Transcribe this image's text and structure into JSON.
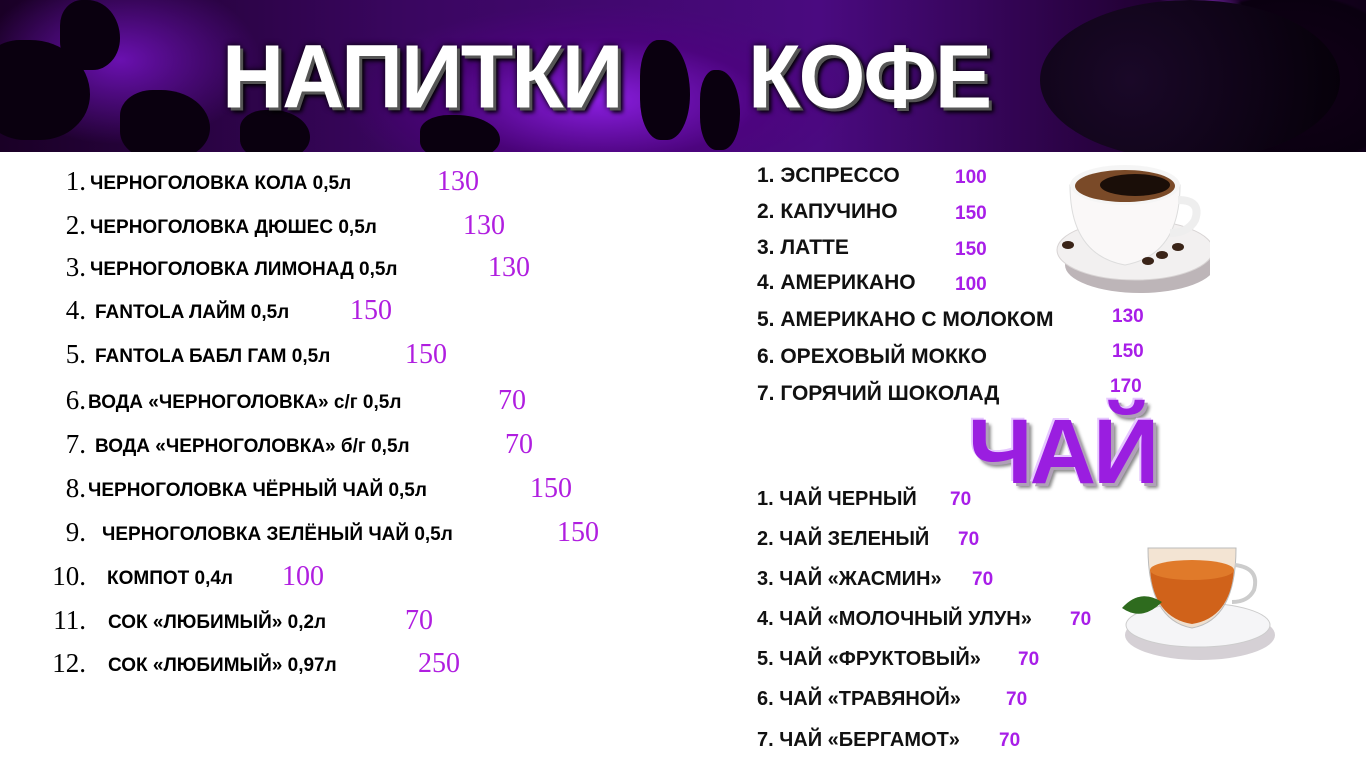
{
  "header": {
    "title_drinks": "НАПИТКИ",
    "title_coffee": "КОФЕ"
  },
  "colors": {
    "price": "#b01ee0",
    "accent": "#9a1ee0",
    "header_bg": "#4a0a80"
  },
  "drinks": [
    {
      "num": "1.",
      "name": "ЧЕРНОГОЛОВКА КОЛА 0,5л",
      "price": "130"
    },
    {
      "num": "2.",
      "name": "ЧЕРНОГОЛОВКА ДЮШЕС 0,5л",
      "price": "130"
    },
    {
      "num": "3.",
      "name": "ЧЕРНОГОЛОВКА ЛИМОНАД 0,5л",
      "price": "130"
    },
    {
      "num": "4.",
      "name": "FANTOLA ЛАЙМ 0,5л",
      "price": "150"
    },
    {
      "num": "5.",
      "name": "FANTOLA БАБЛ ГАМ 0,5л",
      "price": "150"
    },
    {
      "num": "6.",
      "name": "ВОДА «ЧЕРНОГОЛОВКА» с/г 0,5л",
      "price": "70"
    },
    {
      "num": "7.",
      "name": "ВОДА «ЧЕРНОГОЛОВКА» б/г 0,5л",
      "price": "70"
    },
    {
      "num": "8.",
      "name": "ЧЕРНОГОЛОВКА ЧЁРНЫЙ ЧАЙ 0,5л",
      "price": "150"
    },
    {
      "num": "9.",
      "name": "ЧЕРНОГОЛОВКА ЗЕЛЁНЫЙ ЧАЙ 0,5л",
      "price": "150"
    },
    {
      "num": "10.",
      "name": "КОМПОТ 0,4л",
      "price": "100"
    },
    {
      "num": "11.",
      "name": "СОК «ЛЮБИМЫЙ» 0,2л",
      "price": "70"
    },
    {
      "num": "12.",
      "name": "СОК «ЛЮБИМЫЙ» 0,97л",
      "price": "250"
    }
  ],
  "coffee": [
    {
      "name": "1. ЭСПРЕССО",
      "price": "100"
    },
    {
      "name": "2. КАПУЧИНО",
      "price": "150"
    },
    {
      "name": "3. ЛАТТЕ",
      "price": "150"
    },
    {
      "name": "4. АМЕРИКАНО",
      "price": "100"
    },
    {
      "name": "5. АМЕРИКАНО С МОЛОКОМ",
      "price": "130"
    },
    {
      "name": "6. ОРЕХОВЫЙ МОККО",
      "price": "150"
    },
    {
      "name": "7. ГОРЯЧИЙ ШОКОЛАД",
      "price": "170"
    }
  ],
  "tea_title": "ЧАЙ",
  "tea": [
    {
      "name": "1. ЧАЙ ЧЕРНЫЙ",
      "price": "70"
    },
    {
      "name": "2. ЧАЙ ЗЕЛЕНЫЙ",
      "price": "70"
    },
    {
      "name": "3. ЧАЙ «ЖАСМИН»",
      "price": "70"
    },
    {
      "name": "4. ЧАЙ «МОЛОЧНЫЙ УЛУН»",
      "price": "70"
    },
    {
      "name": "5. ЧАЙ «ФРУКТОВЫЙ»",
      "price": "70"
    },
    {
      "name": "6. ЧАЙ «ТРАВЯНОЙ»",
      "price": "70"
    },
    {
      "name": "7. ЧАЙ «БЕРГАМОТ»",
      "price": "70"
    }
  ]
}
